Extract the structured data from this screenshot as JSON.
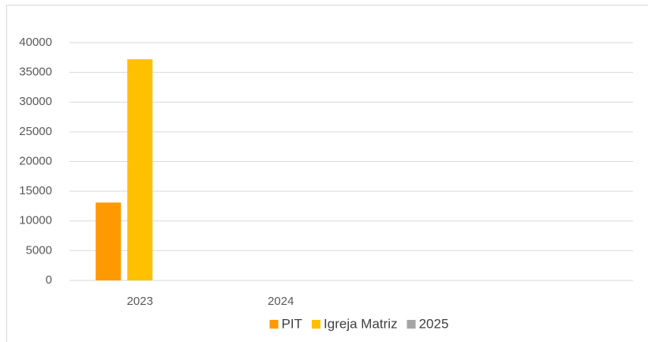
{
  "chart_data": {
    "type": "bar",
    "categories": [
      "2023",
      "2024",
      null,
      null
    ],
    "series": [
      {
        "name": "PIT",
        "color": "#ff9900",
        "values": [
          13100,
          null,
          null,
          null
        ]
      },
      {
        "name": "Igreja Matriz",
        "color": "#ffc000",
        "values": [
          37200,
          null,
          null,
          null
        ]
      },
      {
        "name": "2025",
        "color": "#a5a5a5",
        "values": [
          null,
          null,
          null,
          null
        ]
      }
    ],
    "ylim": [
      0,
      40000
    ],
    "yticks": [
      0,
      5000,
      10000,
      15000,
      20000,
      25000,
      30000,
      35000,
      40000
    ],
    "grid": true,
    "legend": "bottom"
  }
}
